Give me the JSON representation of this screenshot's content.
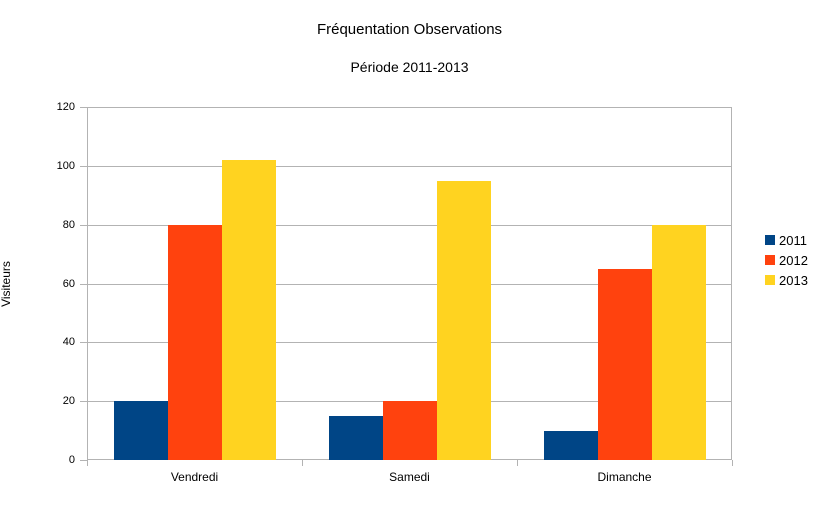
{
  "chart_data": {
    "type": "bar",
    "title": "Fréquentation Observations",
    "subtitle": "Période 2011-2013",
    "categories": [
      "Vendredi",
      "Samedi",
      "Dimanche"
    ],
    "series": [
      {
        "name": "2011",
        "color": "#004586",
        "values": [
          20,
          15,
          10
        ]
      },
      {
        "name": "2012",
        "color": "#FF420E",
        "values": [
          80,
          20,
          65
        ]
      },
      {
        "name": "2013",
        "color": "#FFD320",
        "values": [
          102,
          95,
          80
        ]
      }
    ],
    "xlabel": "",
    "ylabel": "Visiteurs",
    "ylim": [
      0,
      120
    ],
    "ytick_step": 20,
    "ytick_labels": [
      "0",
      "20",
      "40",
      "60",
      "80",
      "100",
      "120"
    ],
    "grid": "horizontal",
    "grid_color": "#B3B3B3",
    "axis_color": "#B3B3B3",
    "text_color": "#000000",
    "background_color": "#FFFFFF",
    "legend_position": "right"
  }
}
